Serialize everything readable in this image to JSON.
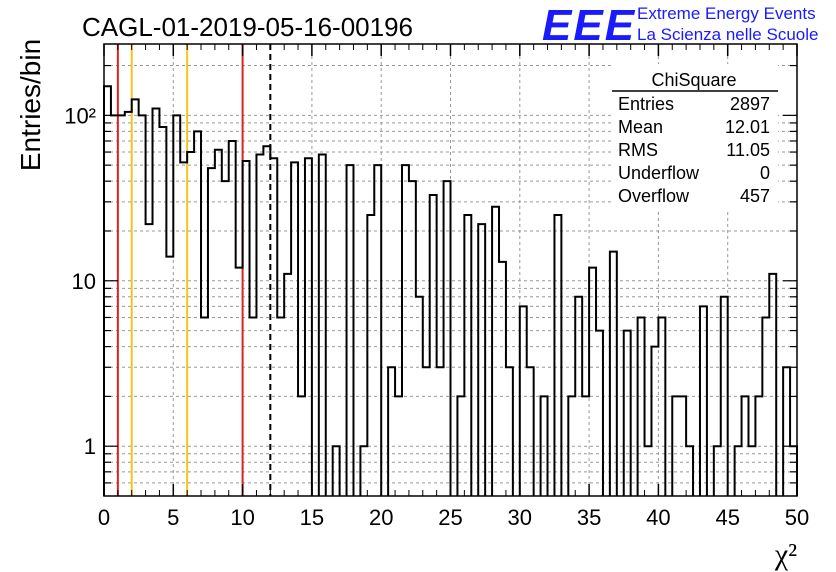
{
  "title": "CAGL-01-2019-05-16-00196",
  "logo": {
    "text": "EEE",
    "line1": "Extreme Energy Events",
    "line2": "La Scienza nelle Scuole",
    "color": "#1a1aff"
  },
  "stats": {
    "name": "ChiSquare",
    "rows": [
      {
        "label": "Entries",
        "value": "2897"
      },
      {
        "label": "Mean",
        "value": "12.01"
      },
      {
        "label": "RMS",
        "value": "11.05"
      },
      {
        "label": "Underflow",
        "value": "0"
      },
      {
        "label": "Overflow",
        "value": "457"
      }
    ]
  },
  "chart_data": {
    "type": "bar",
    "title": "CAGL-01-2019-05-16-00196",
    "xlabel": "χ²",
    "ylabel": "Entries/bin",
    "xlim": [
      0,
      50
    ],
    "ylim": [
      0.5,
      270
    ],
    "yscale": "log",
    "grid": true,
    "bin_width": 0.5,
    "x_ticks": [
      "0",
      "5",
      "10",
      "15",
      "20",
      "25",
      "30",
      "35",
      "40",
      "45",
      "50"
    ],
    "y_ticks": [
      {
        "value": 1,
        "label": "1"
      },
      {
        "value": 10,
        "label": "10"
      },
      {
        "value": 100,
        "label": "10²"
      }
    ],
    "values": [
      150,
      100,
      100,
      105,
      125,
      100,
      22,
      110,
      85,
      14,
      100,
      52,
      60,
      80,
      6,
      48,
      62,
      40,
      70,
      12,
      53,
      6,
      58,
      65,
      55,
      6,
      11,
      52,
      2,
      55,
      0,
      58,
      0,
      1,
      0,
      50,
      0,
      1,
      25,
      50,
      0,
      3,
      2,
      50,
      40,
      8,
      3,
      33,
      3,
      40,
      0,
      2,
      25,
      0,
      22,
      0,
      28,
      13,
      3,
      0,
      7,
      3,
      0,
      2,
      0,
      25,
      0,
      2,
      8,
      2,
      12,
      5,
      0,
      15,
      0,
      5,
      0,
      6,
      1,
      4,
      6,
      0,
      2,
      2,
      1,
      0,
      7,
      0,
      1,
      8,
      0,
      1,
      2,
      1,
      2,
      6,
      11,
      0,
      3,
      1
    ],
    "markers": [
      {
        "x": 1,
        "color": "#dd2222",
        "style": "solid"
      },
      {
        "x": 2,
        "color": "#f5c518",
        "style": "solid"
      },
      {
        "x": 6,
        "color": "#f5c518",
        "style": "solid"
      },
      {
        "x": 10,
        "color": "#dd2222",
        "style": "solid"
      },
      {
        "x": 12,
        "color": "#000000",
        "style": "dashed"
      }
    ]
  }
}
